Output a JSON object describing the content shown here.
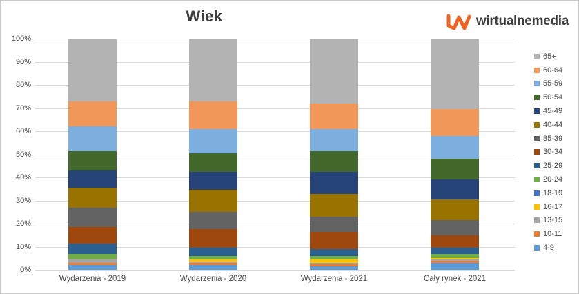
{
  "logo": {
    "text": "wirtualnemedia",
    "mark_color": "#F26322",
    "text_color": "#3D3D3D"
  },
  "colors": {
    "gridline": "#D9D9D9",
    "axis_text": "#4A4A4A",
    "title_text": "#3D3D3D",
    "frame_border": "#C9C9C9",
    "background": "#FFFFFF"
  },
  "chart_data": {
    "type": "bar",
    "variant": "stacked-100-percent-column",
    "title": "Wiek",
    "xlabel": "",
    "ylabel": "",
    "ylim": [
      0,
      100
    ],
    "grid": true,
    "legend_position": "right",
    "y_ticks": [
      "0%",
      "10%",
      "20%",
      "30%",
      "40%",
      "50%",
      "60%",
      "70%",
      "80%",
      "90%",
      "100%"
    ],
    "categories": [
      "Wydarzenia - 2019",
      "Wydarzenia - 2020",
      "Wydarzenia - 2021",
      "Cały rynek - 2021"
    ],
    "series": [
      {
        "name": "4-9",
        "color": "#5B9BD5",
        "values": [
          2,
          2,
          1.5,
          3
        ]
      },
      {
        "name": "10-11",
        "color": "#ED7D31",
        "values": [
          1,
          1,
          1,
          1
        ]
      },
      {
        "name": "13-15",
        "color": "#A5A5A5",
        "values": [
          1.5,
          0.5,
          0.5,
          0.5
        ]
      },
      {
        "name": "16-17",
        "color": "#FFC000",
        "values": [
          0,
          1,
          1.5,
          0.5
        ]
      },
      {
        "name": "18-19",
        "color": "#4472C4",
        "values": [
          0,
          0,
          0,
          0
        ]
      },
      {
        "name": "20-24",
        "color": "#70AD47",
        "values": [
          2.5,
          1.5,
          1.5,
          2
        ]
      },
      {
        "name": "25-29",
        "color": "#2A5F8F",
        "values": [
          4.5,
          3.5,
          3,
          2.5
        ]
      },
      {
        "name": "30-34",
        "color": "#9E480E",
        "values": [
          7,
          8,
          7.5,
          5.5
        ]
      },
      {
        "name": "35-39",
        "color": "#636363",
        "values": [
          8.5,
          7.5,
          6.5,
          6.5
        ]
      },
      {
        "name": "40-44",
        "color": "#997300",
        "values": [
          8.5,
          9.5,
          10,
          9
        ]
      },
      {
        "name": "45-49",
        "color": "#264478",
        "values": [
          7.5,
          8,
          9.5,
          8.5
        ]
      },
      {
        "name": "50-54",
        "color": "#43682B",
        "values": [
          8.5,
          8,
          9,
          9
        ]
      },
      {
        "name": "55-59",
        "color": "#7CAFDD",
        "values": [
          10.5,
          10.5,
          9.5,
          10
        ]
      },
      {
        "name": "60-64",
        "color": "#F1975A",
        "values": [
          11,
          12,
          11,
          11.5
        ]
      },
      {
        "name": "65+",
        "color": "#B3B3B3",
        "values": [
          27,
          27,
          28,
          30.5
        ]
      }
    ]
  }
}
